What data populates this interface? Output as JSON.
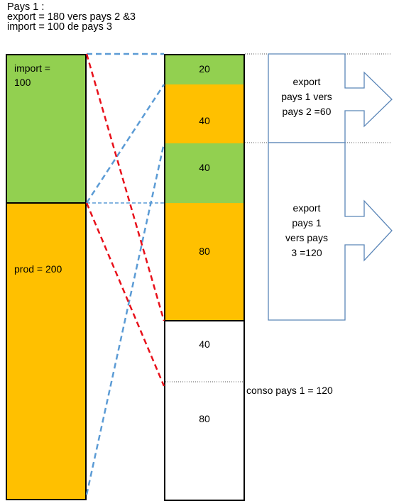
{
  "header": {
    "line1": "Pays 1 :",
    "line2": "export = 180 vers pays 2 &3",
    "line3": "import = 100 de pays 3"
  },
  "left_column": {
    "import_label": "import =",
    "import_value": "100",
    "prod_label": "prod = 200"
  },
  "right_column": {
    "seg1": "20",
    "seg2": "40",
    "seg3": "40",
    "seg4": "80",
    "seg5": "40",
    "seg6": "80"
  },
  "export_boxes": {
    "box1": [
      "export",
      "pays 1 vers",
      "pays 2 =60"
    ],
    "box2": [
      "export",
      "pays 1",
      "vers pays",
      "3 =120"
    ]
  },
  "conso_label": "conso pays 1  = 120",
  "colors": {
    "green": "#92d050",
    "orange": "#ffc000",
    "red_dash": "#e8101a",
    "blue_dash": "#5b9bd5",
    "arrow_outline": "#5b86b8"
  }
}
